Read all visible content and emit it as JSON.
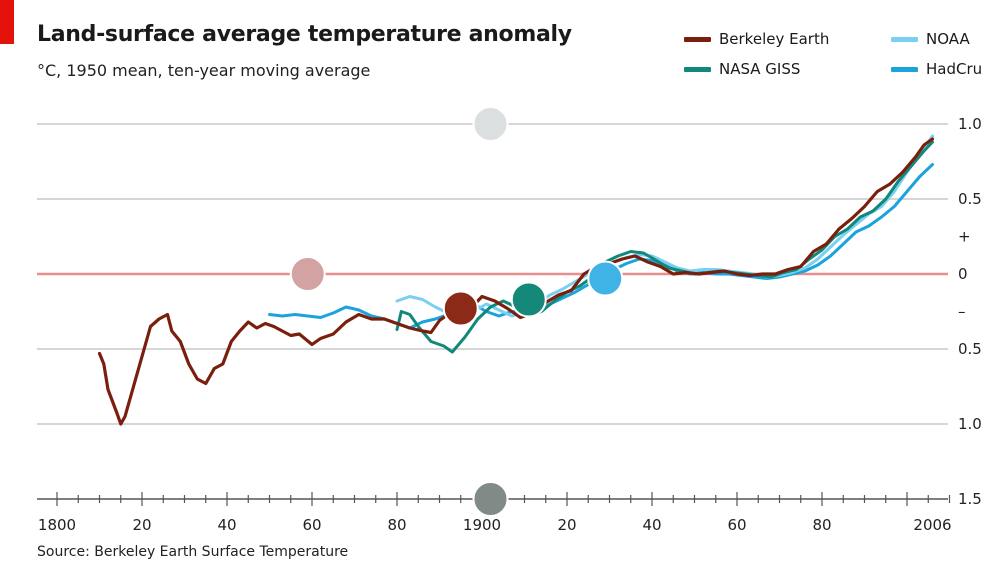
{
  "header": {
    "title": "Land-surface average temperature anomaly",
    "subtitle": "°C, 1950 mean, ten-year moving average"
  },
  "footer": {
    "source": "Source: Berkeley Earth Surface Temperature"
  },
  "legend": [
    {
      "label": "Berkeley Earth",
      "color": "#7a1f0e"
    },
    {
      "label": "NASA GISS",
      "color": "#12887a"
    },
    {
      "label": "NOAA",
      "color": "#79d0f2"
    },
    {
      "label": "HadCru",
      "color": "#1aa3dd"
    }
  ],
  "colors": {
    "accent_red": "#e3120b",
    "zero_line": "#e98d8d",
    "grid": "#d6d6d6"
  },
  "chart_data": {
    "type": "line",
    "title": "Land-surface average temperature anomaly",
    "subtitle": "°C, 1950 mean, ten-year moving average",
    "xlim": [
      1800,
      2010
    ],
    "ylim": [
      -1.5,
      1.0
    ],
    "x_ticks": [
      {
        "value": 1800,
        "label": "1800"
      },
      {
        "value": 1820,
        "label": "20"
      },
      {
        "value": 1840,
        "label": "40"
      },
      {
        "value": 1860,
        "label": "60"
      },
      {
        "value": 1880,
        "label": "80"
      },
      {
        "value": 1900,
        "label": "1900"
      },
      {
        "value": 1920,
        "label": "20"
      },
      {
        "value": 1940,
        "label": "40"
      },
      {
        "value": 1960,
        "label": "60"
      },
      {
        "value": 1980,
        "label": "80"
      },
      {
        "value": 2006,
        "label": "2006"
      }
    ],
    "y_ticks": [
      {
        "value": 1.0,
        "label": "1.0"
      },
      {
        "value": 0.5,
        "label": "0.5"
      },
      {
        "value": 0.25,
        "label": "+"
      },
      {
        "value": 0,
        "label": "0"
      },
      {
        "value": -0.25,
        "label": "–"
      },
      {
        "value": -0.5,
        "label": "0.5"
      },
      {
        "value": -1.0,
        "label": "1.0"
      },
      {
        "value": -1.5,
        "label": "1.5"
      }
    ],
    "grid": true,
    "legend_position": "top-right",
    "series": [
      {
        "name": "Berkeley Earth",
        "color": "#7a1f0e",
        "x": [
          1810,
          1811,
          1812,
          1814,
          1815,
          1816,
          1818,
          1820,
          1822,
          1824,
          1826,
          1827,
          1829,
          1831,
          1833,
          1835,
          1837,
          1839,
          1841,
          1843,
          1845,
          1847,
          1849,
          1851,
          1853,
          1855,
          1857,
          1860,
          1862,
          1865,
          1868,
          1871,
          1874,
          1877,
          1880,
          1883,
          1886,
          1888,
          1890,
          1892,
          1895,
          1898,
          1900,
          1903,
          1906,
          1909,
          1912,
          1915,
          1918,
          1921,
          1924,
          1927,
          1930,
          1933,
          1936,
          1939,
          1942,
          1945,
          1948,
          1951,
          1954,
          1957,
          1960,
          1963,
          1966,
          1969,
          1972,
          1975,
          1978,
          1981,
          1984,
          1987,
          1990,
          1993,
          1996,
          1999,
          2002,
          2004,
          2006
        ],
        "y": [
          -0.53,
          -0.6,
          -0.77,
          -0.92,
          -1.0,
          -0.95,
          -0.75,
          -0.55,
          -0.35,
          -0.3,
          -0.27,
          -0.38,
          -0.45,
          -0.6,
          -0.7,
          -0.73,
          -0.63,
          -0.6,
          -0.45,
          -0.38,
          -0.32,
          -0.36,
          -0.33,
          -0.35,
          -0.38,
          -0.41,
          -0.4,
          -0.47,
          -0.43,
          -0.4,
          -0.32,
          -0.27,
          -0.3,
          -0.3,
          -0.33,
          -0.36,
          -0.38,
          -0.39,
          -0.31,
          -0.27,
          -0.17,
          -0.21,
          -0.15,
          -0.18,
          -0.23,
          -0.29,
          -0.26,
          -0.19,
          -0.14,
          -0.11,
          0.0,
          0.05,
          0.07,
          0.1,
          0.12,
          0.08,
          0.05,
          0.0,
          0.01,
          0.0,
          0.01,
          0.02,
          0.0,
          -0.01,
          0.0,
          0.0,
          0.03,
          0.05,
          0.15,
          0.2,
          0.3,
          0.37,
          0.45,
          0.55,
          0.6,
          0.68,
          0.78,
          0.86,
          0.9
        ]
      },
      {
        "name": "NASA GISS",
        "color": "#12887a",
        "x": [
          1880,
          1881,
          1883,
          1885,
          1888,
          1891,
          1893,
          1896,
          1899,
          1902,
          1905,
          1908,
          1911,
          1914,
          1917,
          1920,
          1923,
          1926,
          1929,
          1932,
          1935,
          1938,
          1941,
          1944,
          1947,
          1950,
          1953,
          1956,
          1959,
          1962,
          1965,
          1968,
          1971,
          1974,
          1977,
          1980,
          1983,
          1986,
          1989,
          1992,
          1995,
          1998,
          2001,
          2004,
          2006
        ],
        "y": [
          -0.37,
          -0.25,
          -0.27,
          -0.35,
          -0.45,
          -0.48,
          -0.52,
          -0.42,
          -0.3,
          -0.22,
          -0.18,
          -0.22,
          -0.28,
          -0.25,
          -0.18,
          -0.12,
          -0.08,
          -0.02,
          0.08,
          0.12,
          0.15,
          0.14,
          0.09,
          0.04,
          0.02,
          0.0,
          0.01,
          0.02,
          0.01,
          0.0,
          -0.01,
          -0.02,
          0.01,
          0.03,
          0.1,
          0.16,
          0.25,
          0.3,
          0.38,
          0.42,
          0.5,
          0.62,
          0.72,
          0.82,
          0.88
        ]
      },
      {
        "name": "NOAA",
        "color": "#79d0f2",
        "x": [
          1880,
          1883,
          1886,
          1889,
          1892,
          1895,
          1898,
          1901,
          1904,
          1907,
          1910,
          1913,
          1916,
          1919,
          1922,
          1925,
          1928,
          1931,
          1934,
          1937,
          1940,
          1943,
          1946,
          1949,
          1952,
          1955,
          1958,
          1961,
          1964,
          1967,
          1970,
          1973,
          1976,
          1979,
          1982,
          1985,
          1988,
          1991,
          1994,
          1997,
          2000,
          2003,
          2006
        ],
        "y": [
          -0.18,
          -0.15,
          -0.17,
          -0.22,
          -0.26,
          -0.3,
          -0.25,
          -0.2,
          -0.24,
          -0.28,
          -0.25,
          -0.2,
          -0.14,
          -0.1,
          -0.05,
          0.0,
          0.04,
          0.08,
          0.11,
          0.13,
          0.12,
          0.08,
          0.04,
          0.02,
          0.03,
          0.03,
          0.02,
          0.01,
          0.0,
          -0.02,
          -0.01,
          0.01,
          0.04,
          0.1,
          0.18,
          0.26,
          0.33,
          0.4,
          0.45,
          0.55,
          0.68,
          0.8,
          0.92
        ]
      },
      {
        "name": "HadCru",
        "color": "#1aa3dd",
        "x": [
          1850,
          1853,
          1856,
          1859,
          1862,
          1865,
          1868,
          1871,
          1874,
          1877,
          1880,
          1883,
          1886,
          1889,
          1892,
          1895,
          1898,
          1901,
          1904,
          1907,
          1910,
          1913,
          1916,
          1919,
          1922,
          1925,
          1928,
          1931,
          1934,
          1937,
          1940,
          1943,
          1946,
          1949,
          1952,
          1955,
          1958,
          1961,
          1964,
          1967,
          1970,
          1973,
          1976,
          1979,
          1982,
          1985,
          1988,
          1991,
          1994,
          1997,
          2000,
          2003,
          2006
        ],
        "y": [
          -0.27,
          -0.28,
          -0.27,
          -0.28,
          -0.29,
          -0.26,
          -0.22,
          -0.24,
          -0.28,
          -0.3,
          -0.33,
          -0.36,
          -0.32,
          -0.3,
          -0.27,
          -0.25,
          -0.2,
          -0.25,
          -0.28,
          -0.25,
          -0.26,
          -0.25,
          -0.2,
          -0.16,
          -0.12,
          -0.07,
          -0.02,
          0.03,
          0.07,
          0.1,
          0.09,
          0.06,
          0.02,
          0.0,
          0.01,
          0.0,
          0.0,
          -0.01,
          -0.02,
          -0.03,
          -0.02,
          0.0,
          0.02,
          0.06,
          0.12,
          0.2,
          0.28,
          0.32,
          0.38,
          0.45,
          0.55,
          0.65,
          0.73
        ]
      }
    ],
    "circle_markers": [
      {
        "x": 1902,
        "y": 1.0,
        "color": "#dcdfe0"
      },
      {
        "x": 1859,
        "y": 0.0,
        "color": "#d3a3a3"
      },
      {
        "x": 1895,
        "y": -0.23,
        "color": "#8b2a16"
      },
      {
        "x": 1911,
        "y": -0.17,
        "color": "#14897a"
      },
      {
        "x": 1929,
        "y": -0.03,
        "color": "#3fb3e6"
      },
      {
        "x": 1902,
        "y": -1.5,
        "color": "#808a87"
      }
    ]
  }
}
